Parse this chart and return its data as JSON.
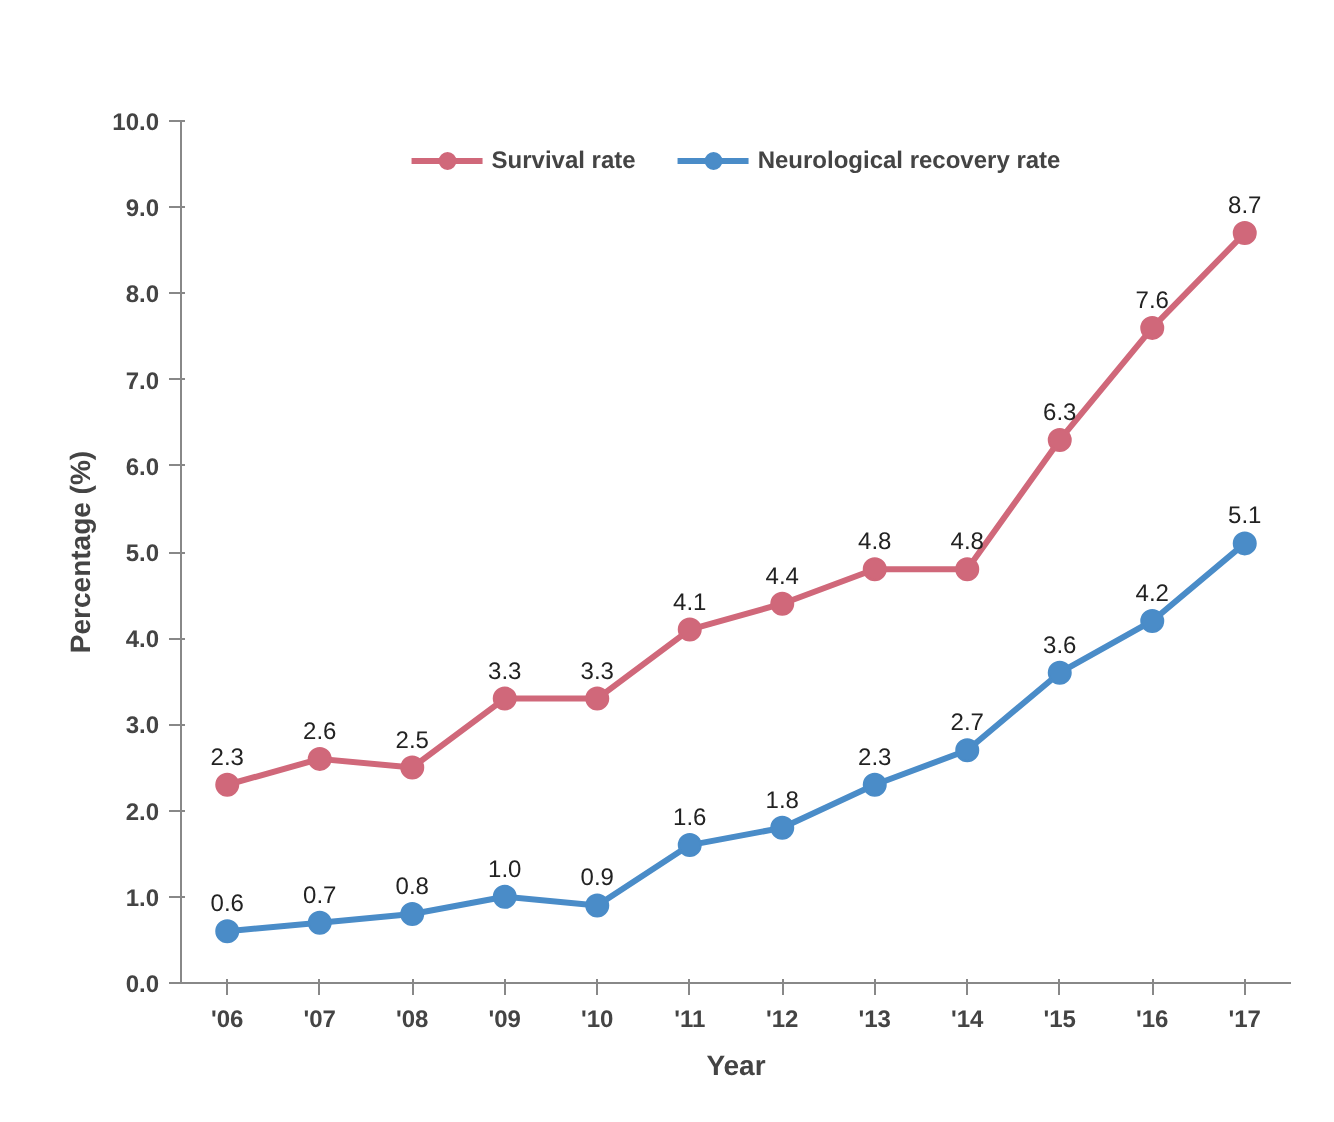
{
  "chart_data": {
    "type": "line",
    "xlabel": "Year",
    "ylabel": "Percentage (%)",
    "categories": [
      "'06",
      "'07",
      "'08",
      "'09",
      "'10",
      "'11",
      "'12",
      "'13",
      "'14",
      "'15",
      "'16",
      "'17"
    ],
    "series": [
      {
        "name": "Survival rate",
        "color": "#d0687a",
        "values": [
          2.3,
          2.6,
          2.5,
          3.3,
          3.3,
          4.1,
          4.4,
          4.8,
          4.8,
          6.3,
          7.6,
          8.7
        ],
        "value_labels": [
          "2.3",
          "2.6",
          "2.5",
          "3.3",
          "3.3",
          "4.1",
          "4.4",
          "4.8",
          "4.8",
          "6.3",
          "7.6",
          "8.7"
        ]
      },
      {
        "name": "Neurological recovery rate",
        "color": "#4a8cc8",
        "values": [
          0.6,
          0.7,
          0.8,
          1.0,
          0.9,
          1.6,
          1.8,
          2.3,
          2.7,
          3.6,
          4.2,
          5.1
        ],
        "value_labels": [
          "0.6",
          "0.7",
          "0.8",
          "1.0",
          "0.9",
          "1.6",
          "1.8",
          "2.3",
          "2.7",
          "3.6",
          "4.2",
          "5.1"
        ]
      }
    ],
    "ylim": [
      0,
      10
    ],
    "yticks": [
      {
        "value": 0,
        "label": "0.0"
      },
      {
        "value": 1,
        "label": "1.0"
      },
      {
        "value": 2,
        "label": "2.0"
      },
      {
        "value": 3,
        "label": "3.0"
      },
      {
        "value": 4,
        "label": "4.0"
      },
      {
        "value": 5,
        "label": "5.0"
      },
      {
        "value": 6,
        "label": "6.0"
      },
      {
        "value": 7,
        "label": "7.0"
      },
      {
        "value": 8,
        "label": "8.0"
      },
      {
        "value": 9,
        "label": "9.0"
      },
      {
        "value": 10,
        "label": "10.0"
      }
    ],
    "grid": false,
    "legend": "top",
    "marker": "circle",
    "line_style": "solid"
  }
}
